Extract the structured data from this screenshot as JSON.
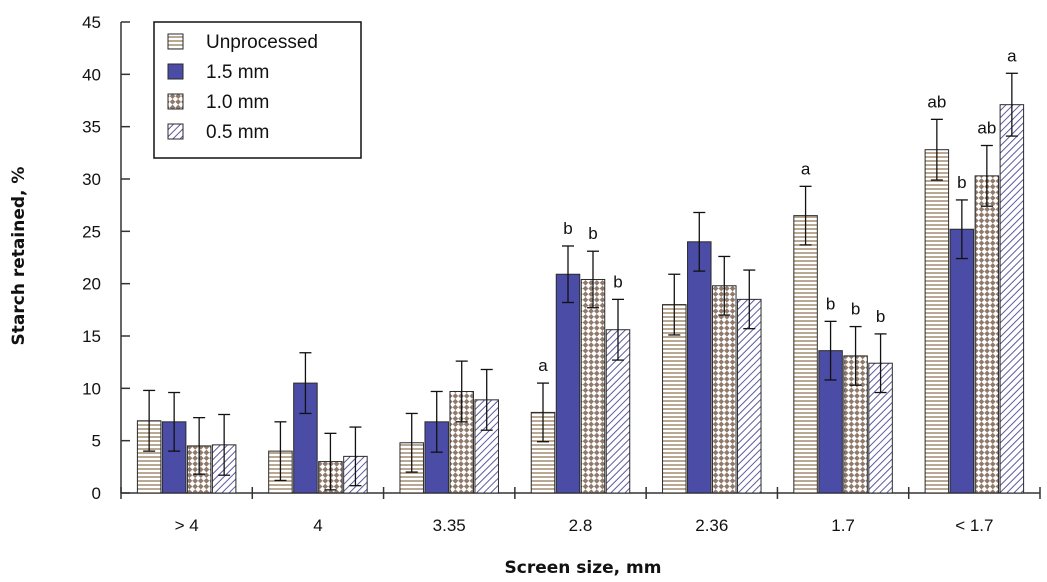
{
  "chart_data": {
    "type": "bar",
    "xlabel": "Screen size, mm",
    "ylabel": "Starch retained, %",
    "ylim": [
      0,
      45
    ],
    "yticks": [
      0,
      5,
      10,
      15,
      20,
      25,
      30,
      35,
      40,
      45
    ],
    "legend_position": "top-left",
    "grid": false,
    "categories": [
      "> 4",
      "4",
      "3.35",
      "2.8",
      "2.36",
      "1.7",
      "< 1.7"
    ],
    "series": [
      {
        "name": "Unprocessed",
        "pattern": "horizontal-lines",
        "color": "#8b6f4e",
        "values": [
          6.9,
          4.0,
          4.8,
          7.7,
          18.0,
          26.5,
          32.8
        ],
        "errors": [
          2.9,
          2.8,
          2.8,
          2.8,
          2.9,
          2.8,
          2.9
        ],
        "labels": [
          "",
          "",
          "",
          "a",
          "",
          "a",
          "ab"
        ]
      },
      {
        "name": "1.5 mm",
        "pattern": "solid",
        "color": "#4a4ca6",
        "values": [
          6.8,
          10.5,
          6.8,
          20.9,
          24.0,
          13.6,
          25.2
        ],
        "errors": [
          2.8,
          2.9,
          2.9,
          2.7,
          2.8,
          2.8,
          2.8
        ],
        "labels": [
          "",
          "",
          "",
          "b",
          "",
          "b",
          "b"
        ]
      },
      {
        "name": "1.0 mm",
        "pattern": "diamond-check",
        "color": "#8f7a6c",
        "values": [
          4.5,
          3.0,
          9.7,
          20.4,
          19.8,
          13.1,
          30.3
        ],
        "errors": [
          2.7,
          2.7,
          2.9,
          2.7,
          2.8,
          2.8,
          2.9
        ],
        "labels": [
          "",
          "",
          "",
          "b",
          "",
          "b",
          "ab"
        ]
      },
      {
        "name": "0.5 mm",
        "pattern": "diagonal-lines",
        "color": "#5d5a9e",
        "values": [
          4.6,
          3.5,
          8.9,
          15.6,
          18.5,
          12.4,
          37.1
        ],
        "errors": [
          2.9,
          2.8,
          2.9,
          2.9,
          2.8,
          2.8,
          3.0
        ],
        "labels": [
          "",
          "",
          "",
          "b",
          "",
          "b",
          "a"
        ]
      }
    ]
  }
}
